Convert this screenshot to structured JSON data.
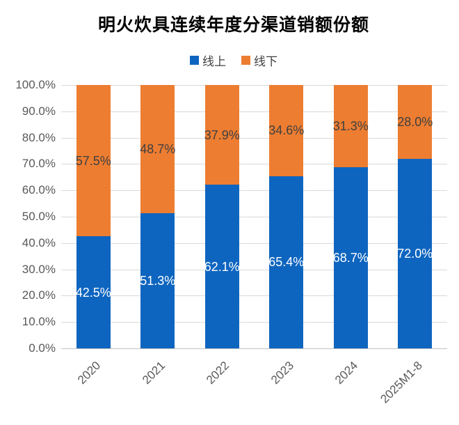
{
  "chart_data": {
    "type": "bar",
    "variant": "stacked-percent-column",
    "title": "明火炊具连续年度分渠道销额份额",
    "categories": [
      "2020",
      "2021",
      "2022",
      "2023",
      "2024",
      "2025M1-8"
    ],
    "series": [
      {
        "name": "线上",
        "slug": "online",
        "color": "#0e65bf",
        "label_color": "#ffffff",
        "values": [
          42.5,
          51.3,
          62.1,
          65.4,
          68.7,
          72.0
        ]
      },
      {
        "name": "线下",
        "slug": "offline",
        "color": "#ed7d31",
        "label_color": "#404040",
        "values": [
          57.5,
          48.7,
          37.9,
          34.6,
          31.3,
          28.0
        ]
      }
    ],
    "ylim": [
      0,
      100
    ],
    "y_tick_labels": [
      "0.0%",
      "10.0%",
      "20.0%",
      "30.0%",
      "40.0%",
      "50.0%",
      "60.0%",
      "70.0%",
      "80.0%",
      "90.0%",
      "100.0%"
    ],
    "grid": true,
    "legend_position": "top",
    "data_label_format": "x.x%"
  },
  "colors": {
    "background": "#ffffff",
    "gridline": "#d9d9d9",
    "axis_line": "#bfbfbf",
    "tick_text": "#595959",
    "title_text": "#000000"
  }
}
